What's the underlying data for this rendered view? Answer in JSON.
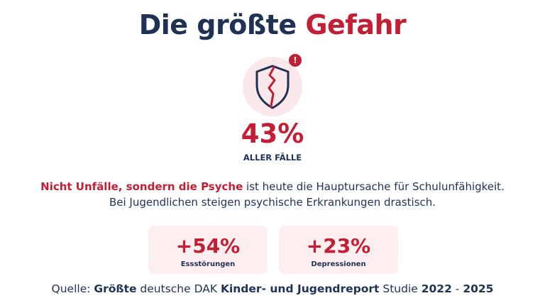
{
  "title": {
    "part1": "Die größte",
    "part2": "Gefahr"
  },
  "icon": {
    "name": "broken-shield-icon",
    "badge": "!"
  },
  "headline_stat": {
    "value": "43%",
    "label": "ALLER FÄLLE"
  },
  "description": {
    "highlight": "Nicht Unfälle, sondern die Psyche",
    "rest_line1": " ist heute die Hauptursache für Schulunfähigkeit.",
    "line2": "Bei Jugendlichen steigen psychische Erkrankungen drastisch."
  },
  "stats": [
    {
      "value": "+54%",
      "label": "Essstörungen"
    },
    {
      "value": "+23%",
      "label": "Depressionen"
    }
  ],
  "source": {
    "prefix": "Quelle: ",
    "bold1": "Größte",
    "mid1": " deutsche DAK ",
    "bold2": "Kinder- und Jugendreport",
    "mid2": " Studie ",
    "bold3": "2022",
    "mid3": " - ",
    "bold4": "2025"
  },
  "colors": {
    "navy": "#1f3256",
    "red": "#c41e34",
    "pink_bg": "#fdeef0"
  }
}
